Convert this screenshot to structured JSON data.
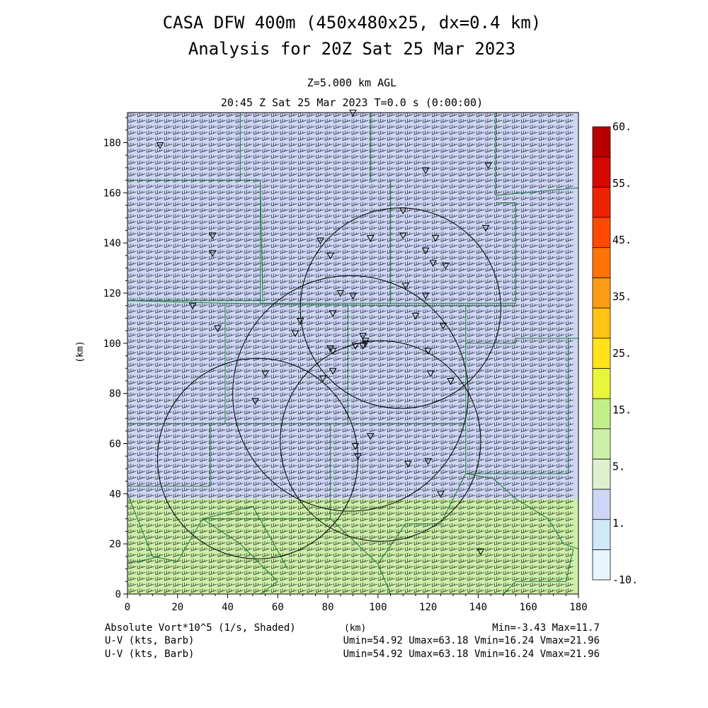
{
  "title_line1": "CASA DFW 400m (450x480x25, dx=0.4 km)",
  "title_line2": "Analysis for 20Z Sat 25 Mar 2023",
  "subtitle_level": "Z=5.000 km AGL",
  "subtitle_time": "20:45 Z Sat 25 Mar 2023   T=0.0 s (0:00:00)",
  "footer": {
    "field_label": "Absolute Vort*10^5 (1/s, Shaded)",
    "xunit": "(km)",
    "minmax": "Min=-3.43 Max=11.7",
    "barb_label_1": "U-V (kts, Barb)",
    "barb_stats_1": "Umin=54.92 Umax=63.18 Vmin=16.24 Vmax=21.96",
    "barb_label_2": "U-V (kts, Barb)",
    "barb_stats_2": "Umin=54.92 Umax=63.18 Vmin=16.24 Vmax=21.96"
  },
  "chart_data": {
    "type": "heatmap",
    "xlabel": "",
    "ylabel": "(km)",
    "xlim": [
      0,
      180
    ],
    "ylim": [
      0,
      192
    ],
    "xticks": [
      0,
      20,
      40,
      60,
      80,
      100,
      120,
      140,
      160,
      180
    ],
    "yticks": [
      0,
      20,
      40,
      60,
      80,
      100,
      120,
      140,
      160,
      180
    ],
    "colorbar": {
      "labels": [
        "60.",
        "55.",
        "45.",
        "35.",
        "25.",
        "15.",
        "5.",
        "1.",
        "-10."
      ],
      "levels": [
        -10,
        0,
        1,
        2,
        5,
        10,
        15,
        20,
        25,
        30,
        35,
        40,
        45,
        50,
        55,
        60
      ],
      "colors": [
        "#e6f6fc",
        "#cfe9f7",
        "#cdd6f6",
        "#dff0cf",
        "#cdf0a8",
        "#c2ee88",
        "#e9f53a",
        "#ffe21a",
        "#ffc414",
        "#ff9d12",
        "#ff7306",
        "#ff4a00",
        "#ec2400",
        "#d60800",
        "#b80000"
      ]
    },
    "field_regions": [
      {
        "x0": 0,
        "x1": 180,
        "y0": 38,
        "y1": 192,
        "value": 1.5
      },
      {
        "x0": 0,
        "x1": 180,
        "y0": 0,
        "y1": 38,
        "value": 6
      }
    ],
    "wind_barbs": {
      "u_range": [
        54.92,
        63.18
      ],
      "v_range": [
        16.24,
        21.96
      ],
      "units": "kts"
    },
    "radar_rings": [
      {
        "x": 52,
        "y": 54,
        "r": 40
      },
      {
        "x": 89,
        "y": 80,
        "r": 47
      },
      {
        "x": 101,
        "y": 61,
        "r": 40
      },
      {
        "x": 109,
        "y": 114,
        "r": 40
      }
    ],
    "stations": [
      [
        13,
        179
      ],
      [
        90,
        192
      ],
      [
        119,
        169
      ],
      [
        144,
        171
      ],
      [
        110,
        153
      ],
      [
        143,
        146
      ],
      [
        34,
        143
      ],
      [
        110,
        143
      ],
      [
        97,
        142
      ],
      [
        123,
        142
      ],
      [
        77,
        141
      ],
      [
        119,
        137
      ],
      [
        34,
        136
      ],
      [
        81,
        135
      ],
      [
        122,
        132
      ],
      [
        127,
        131
      ],
      [
        111,
        123
      ],
      [
        85,
        120
      ],
      [
        90,
        119
      ],
      [
        119,
        119
      ],
      [
        26,
        115
      ],
      [
        82,
        112
      ],
      [
        115,
        111
      ],
      [
        69,
        109
      ],
      [
        36,
        106
      ],
      [
        126,
        107
      ],
      [
        67,
        104
      ],
      [
        94,
        103
      ],
      [
        95,
        101
      ],
      [
        95,
        100
      ],
      [
        81,
        98
      ],
      [
        82,
        97
      ],
      [
        91,
        99
      ],
      [
        120,
        97
      ],
      [
        94,
        99
      ],
      [
        82,
        89
      ],
      [
        121,
        88
      ],
      [
        55,
        88
      ],
      [
        78,
        86
      ],
      [
        129,
        85
      ],
      [
        51,
        77
      ],
      [
        97,
        63
      ],
      [
        91,
        59
      ],
      [
        92,
        55
      ],
      [
        112,
        52
      ],
      [
        120,
        53
      ],
      [
        125,
        40
      ],
      [
        141,
        17
      ]
    ]
  }
}
